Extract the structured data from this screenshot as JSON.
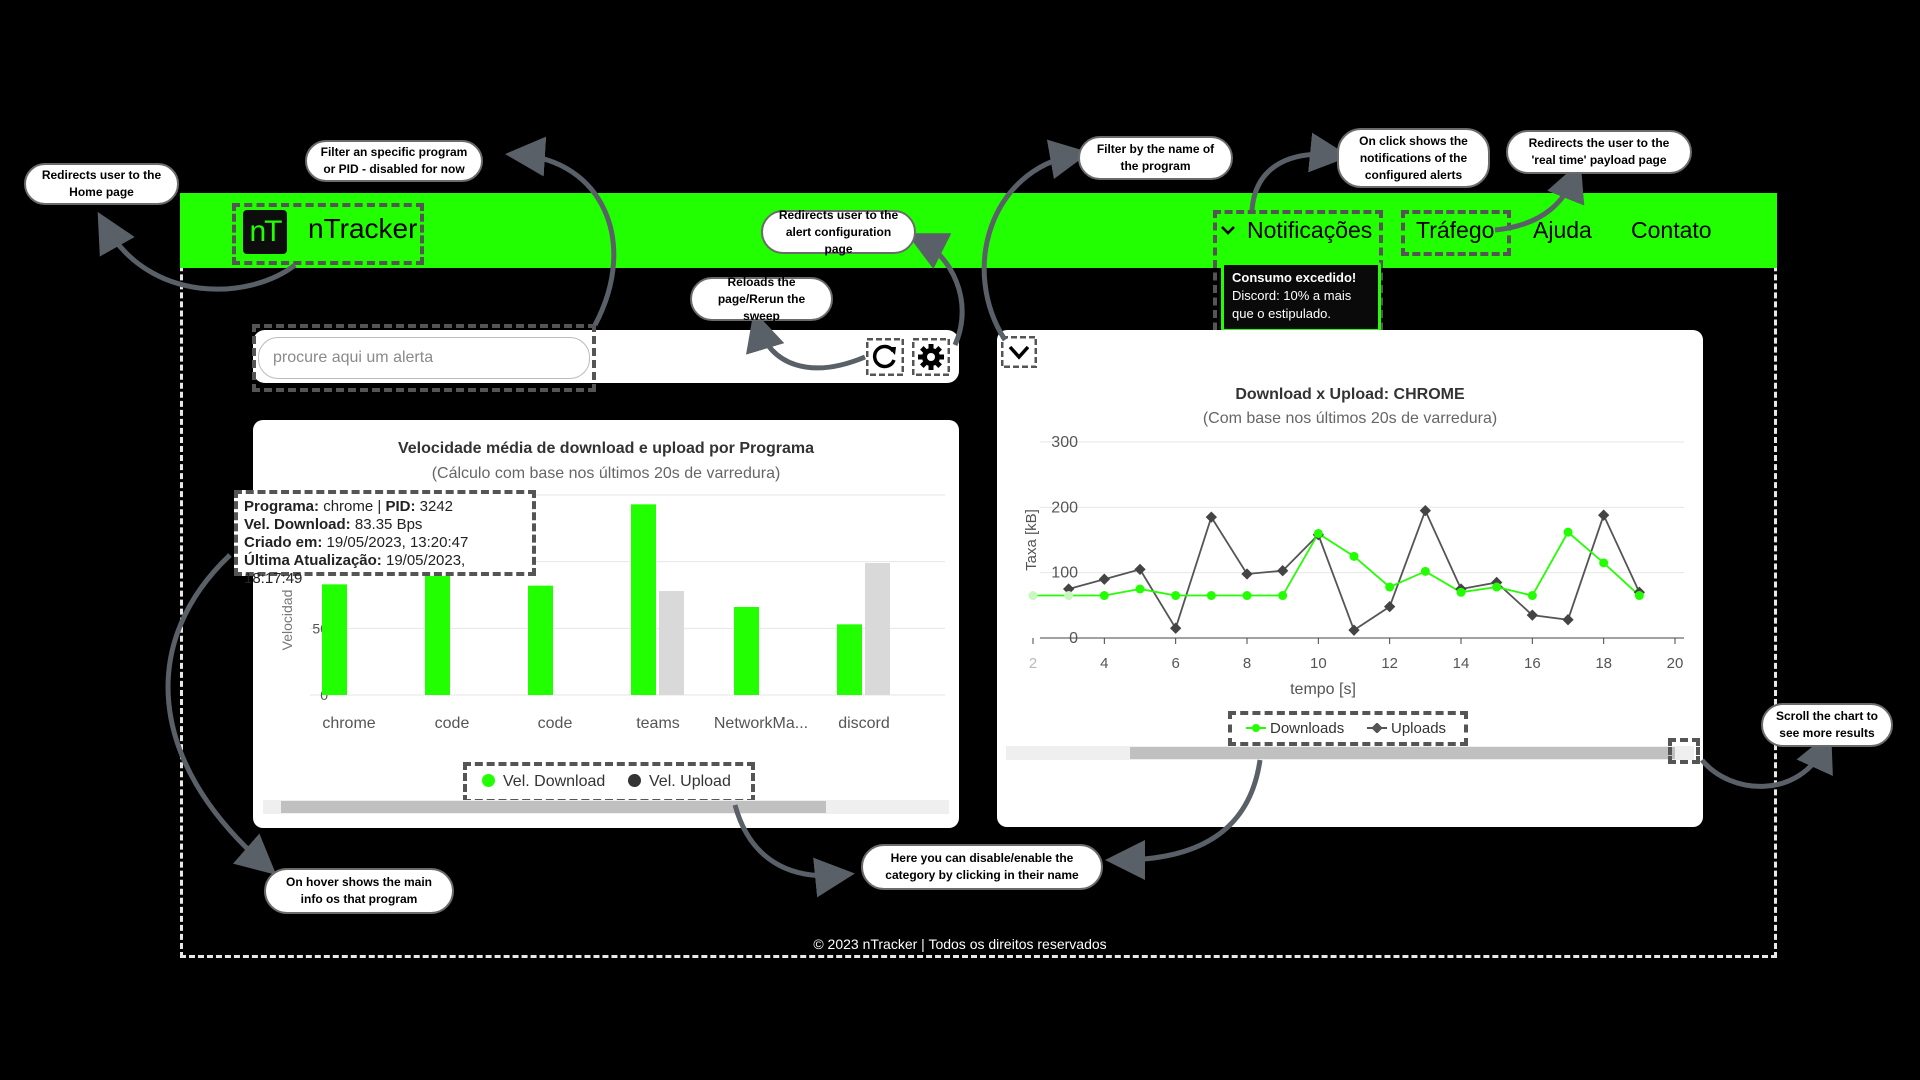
{
  "brand": {
    "logo_mark": "nT",
    "name": "nTracker"
  },
  "nav": {
    "notifications": "Notificações",
    "traffic": "Tráfego",
    "help": "Ajuda",
    "contact": "Contato"
  },
  "notification_popup": {
    "title": "Consumo excedido!",
    "message": "Discord: 10% a mais que o estipulado."
  },
  "search": {
    "placeholder": "procure aqui um alerta"
  },
  "icons": {
    "reload": "reload-icon",
    "settings": "gear-icon",
    "dropdown": "chevron-down-icon"
  },
  "colors": {
    "accent": "#22ff00",
    "upload_grey": "#d9d9d9",
    "upload_line": "#555555"
  },
  "bar_chart": {
    "title": "Velocidade média de download e upload por Programa",
    "subtitle": "(Cálculo com base nos últimos 20s de varredura)",
    "ylabel": "Velocidad",
    "legend_download": "Vel. Download",
    "legend_upload": "Vel. Upload",
    "tooltip": {
      "program_label": "Programa:",
      "program_value": "chrome",
      "pid_label": "PID:",
      "pid_value": "3242",
      "download_label": "Vel. Download:",
      "download_value": "83.35 Bps",
      "created_label": "Criado em:",
      "created_value": "19/05/2023, 13:20:47",
      "updated_label": "Última Atualização:",
      "updated_value": "19/05/2023, 18:17:49"
    }
  },
  "line_chart": {
    "title": "Download x Upload: CHROME",
    "subtitle": "(Com base nos últimos 20s de varredura)",
    "ylabel": "Taxa [kB]",
    "xlabel": "tempo [s]",
    "legend_download": "Downloads",
    "legend_upload": "Uploads"
  },
  "chart_data": [
    {
      "type": "bar",
      "title": "Velocidade média de download e upload por Programa",
      "subtitle": "(Cálculo com base nos últimos 20s de varredura)",
      "ylabel": "Velocidad",
      "categories": [
        "chrome",
        "code",
        "code",
        "teams",
        "NetworkMa...",
        "discord"
      ],
      "y_ticks": [
        0,
        50
      ],
      "ylim": [
        0,
        150
      ],
      "series": [
        {
          "name": "Vel. Download",
          "values": [
            83,
            90,
            82,
            143,
            66,
            53
          ]
        },
        {
          "name": "Vel. Upload",
          "values": [
            null,
            null,
            null,
            78,
            null,
            99
          ]
        }
      ],
      "legend": "bottom",
      "grid": true
    },
    {
      "type": "line",
      "title": "Download x Upload: CHROME",
      "subtitle": "(Com base nos últimos 20s de varredura)",
      "xlabel": "tempo [s]",
      "ylabel": "Taxa [kB]",
      "x_ticks": [
        2,
        4,
        6,
        8,
        10,
        12,
        14,
        16,
        18,
        20
      ],
      "y_ticks": [
        0,
        100,
        200,
        300
      ],
      "xlim": [
        2,
        20
      ],
      "ylim": [
        0,
        300
      ],
      "series": [
        {
          "name": "Downloads",
          "x": [
            2,
            3,
            4,
            5,
            6,
            7,
            8,
            9,
            10,
            11,
            12,
            13,
            14,
            15,
            16,
            17,
            18,
            19
          ],
          "values": [
            65,
            65,
            65,
            75,
            65,
            65,
            65,
            65,
            160,
            125,
            78,
            102,
            70,
            78,
            65,
            162,
            115,
            65
          ]
        },
        {
          "name": "Uploads",
          "x": [
            3,
            4,
            5,
            6,
            7,
            8,
            9,
            10,
            11,
            12,
            13,
            14,
            15,
            16,
            17,
            18,
            19
          ],
          "values": [
            75,
            90,
            105,
            15,
            185,
            98,
            103,
            158,
            12,
            48,
            195,
            75,
            85,
            35,
            28,
            188,
            70
          ]
        }
      ],
      "legend": "bottom",
      "grid": true
    }
  ],
  "annotations": {
    "home": "Redirects user to the Home page",
    "filter_program": "Filter an specific program or PID - disabled for now",
    "alert_config": "Redirects user to the alert configuration page",
    "reload": "Reloads the page/Rerun the sweep",
    "filter_name": "Filter by the name of the program",
    "notifications": "On click shows the notifications of the configured alerts",
    "traffic": "Redirects the user to the 'real time' payload page",
    "scroll": "Scroll the chart to see more results",
    "category": "Here you can disable/enable the category by clicking in their name",
    "hover": "On hover shows the main info os that program"
  },
  "footer": "© 2023 nTracker | Todos os direitos reservados"
}
